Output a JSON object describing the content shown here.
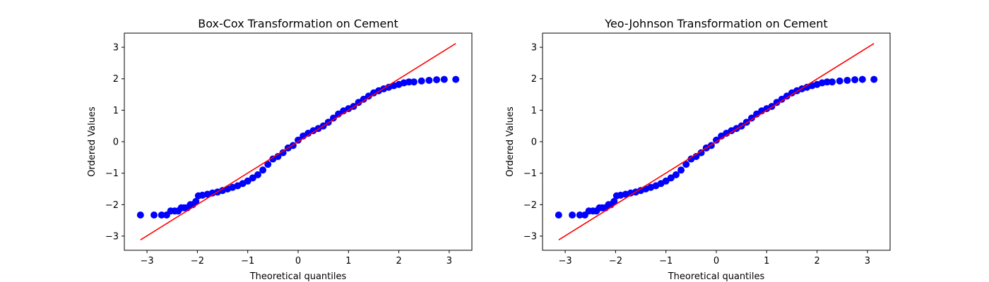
{
  "chart_data": [
    {
      "type": "scatter",
      "title": "Box-Cox Transformation on Cement",
      "xlabel": "Theoretical quantiles",
      "ylabel": "Ordered Values",
      "xlim": [
        -3.45,
        3.45
      ],
      "ylim": [
        -3.45,
        3.45
      ],
      "xticks": [
        -3,
        -2,
        -1,
        0,
        1,
        2,
        3
      ],
      "yticks": [
        -3,
        -2,
        -1,
        0,
        1,
        2,
        3
      ],
      "grid": false,
      "series": [
        {
          "kind": "points",
          "color": "#0000ff",
          "points": [
            [
              -3.13,
              -2.33
            ],
            [
              -2.86,
              -2.33
            ],
            [
              -2.71,
              -2.33
            ],
            [
              -2.61,
              -2.33
            ],
            [
              -2.53,
              -2.2
            ],
            [
              -2.45,
              -2.2
            ],
            [
              -2.38,
              -2.2
            ],
            [
              -2.32,
              -2.1
            ],
            [
              -2.26,
              -2.1
            ],
            [
              -2.2,
              -2.1
            ],
            [
              -2.14,
              -2.0
            ],
            [
              -2.09,
              -2.0
            ],
            [
              -2.03,
              -1.9
            ],
            [
              -1.98,
              -1.72
            ],
            [
              -1.9,
              -1.7
            ],
            [
              -1.8,
              -1.67
            ],
            [
              -1.7,
              -1.63
            ],
            [
              -1.6,
              -1.6
            ],
            [
              -1.5,
              -1.55
            ],
            [
              -1.4,
              -1.5
            ],
            [
              -1.3,
              -1.45
            ],
            [
              -1.2,
              -1.4
            ],
            [
              -1.1,
              -1.33
            ],
            [
              -1.0,
              -1.25
            ],
            [
              -0.9,
              -1.15
            ],
            [
              -0.8,
              -1.05
            ],
            [
              -0.7,
              -0.9
            ],
            [
              -0.6,
              -0.72
            ],
            [
              -0.5,
              -0.55
            ],
            [
              -0.4,
              -0.47
            ],
            [
              -0.3,
              -0.35
            ],
            [
              -0.2,
              -0.2
            ],
            [
              -0.1,
              -0.12
            ],
            [
              0.0,
              0.05
            ],
            [
              0.1,
              0.18
            ],
            [
              0.2,
              0.27
            ],
            [
              0.3,
              0.35
            ],
            [
              0.4,
              0.42
            ],
            [
              0.5,
              0.5
            ],
            [
              0.6,
              0.62
            ],
            [
              0.7,
              0.75
            ],
            [
              0.8,
              0.88
            ],
            [
              0.9,
              0.98
            ],
            [
              1.0,
              1.05
            ],
            [
              1.1,
              1.12
            ],
            [
              1.2,
              1.25
            ],
            [
              1.3,
              1.35
            ],
            [
              1.4,
              1.45
            ],
            [
              1.5,
              1.55
            ],
            [
              1.6,
              1.62
            ],
            [
              1.7,
              1.68
            ],
            [
              1.8,
              1.73
            ],
            [
              1.9,
              1.78
            ],
            [
              2.0,
              1.82
            ],
            [
              2.1,
              1.87
            ],
            [
              2.2,
              1.9
            ],
            [
              2.3,
              1.9
            ],
            [
              2.45,
              1.93
            ],
            [
              2.6,
              1.95
            ],
            [
              2.75,
              1.97
            ],
            [
              2.9,
              1.98
            ],
            [
              3.13,
              1.98
            ]
          ]
        },
        {
          "kind": "line",
          "color": "#ff0000",
          "points": [
            [
              -3.13,
              -3.12
            ],
            [
              3.13,
              3.12
            ]
          ]
        }
      ]
    },
    {
      "type": "scatter",
      "title": "Yeo-Johnson Transformation on Cement",
      "xlabel": "Theoretical quantiles",
      "ylabel": "Ordered Values",
      "xlim": [
        -3.45,
        3.45
      ],
      "ylim": [
        -3.45,
        3.45
      ],
      "xticks": [
        -3,
        -2,
        -1,
        0,
        1,
        2,
        3
      ],
      "yticks": [
        -3,
        -2,
        -1,
        0,
        1,
        2,
        3
      ],
      "grid": false,
      "series": [
        {
          "kind": "points",
          "color": "#0000ff",
          "points": [
            [
              -3.13,
              -2.33
            ],
            [
              -2.86,
              -2.33
            ],
            [
              -2.71,
              -2.33
            ],
            [
              -2.61,
              -2.33
            ],
            [
              -2.53,
              -2.2
            ],
            [
              -2.45,
              -2.2
            ],
            [
              -2.38,
              -2.2
            ],
            [
              -2.32,
              -2.1
            ],
            [
              -2.26,
              -2.1
            ],
            [
              -2.2,
              -2.1
            ],
            [
              -2.14,
              -2.0
            ],
            [
              -2.09,
              -2.0
            ],
            [
              -2.03,
              -1.9
            ],
            [
              -1.98,
              -1.72
            ],
            [
              -1.9,
              -1.7
            ],
            [
              -1.8,
              -1.67
            ],
            [
              -1.7,
              -1.63
            ],
            [
              -1.6,
              -1.6
            ],
            [
              -1.5,
              -1.55
            ],
            [
              -1.4,
              -1.5
            ],
            [
              -1.3,
              -1.45
            ],
            [
              -1.2,
              -1.4
            ],
            [
              -1.1,
              -1.33
            ],
            [
              -1.0,
              -1.25
            ],
            [
              -0.9,
              -1.15
            ],
            [
              -0.8,
              -1.05
            ],
            [
              -0.7,
              -0.9
            ],
            [
              -0.6,
              -0.72
            ],
            [
              -0.5,
              -0.55
            ],
            [
              -0.4,
              -0.47
            ],
            [
              -0.3,
              -0.35
            ],
            [
              -0.2,
              -0.2
            ],
            [
              -0.1,
              -0.12
            ],
            [
              0.0,
              0.05
            ],
            [
              0.1,
              0.18
            ],
            [
              0.2,
              0.27
            ],
            [
              0.3,
              0.35
            ],
            [
              0.4,
              0.42
            ],
            [
              0.5,
              0.5
            ],
            [
              0.6,
              0.62
            ],
            [
              0.7,
              0.75
            ],
            [
              0.8,
              0.88
            ],
            [
              0.9,
              0.98
            ],
            [
              1.0,
              1.05
            ],
            [
              1.1,
              1.12
            ],
            [
              1.2,
              1.25
            ],
            [
              1.3,
              1.35
            ],
            [
              1.4,
              1.45
            ],
            [
              1.5,
              1.55
            ],
            [
              1.6,
              1.62
            ],
            [
              1.7,
              1.68
            ],
            [
              1.8,
              1.73
            ],
            [
              1.9,
              1.78
            ],
            [
              2.0,
              1.82
            ],
            [
              2.1,
              1.87
            ],
            [
              2.2,
              1.9
            ],
            [
              2.3,
              1.9
            ],
            [
              2.45,
              1.93
            ],
            [
              2.6,
              1.95
            ],
            [
              2.75,
              1.97
            ],
            [
              2.9,
              1.98
            ],
            [
              3.13,
              1.98
            ]
          ]
        },
        {
          "kind": "line",
          "color": "#ff0000",
          "points": [
            [
              -3.13,
              -3.12
            ],
            [
              3.13,
              3.12
            ]
          ]
        }
      ]
    }
  ]
}
